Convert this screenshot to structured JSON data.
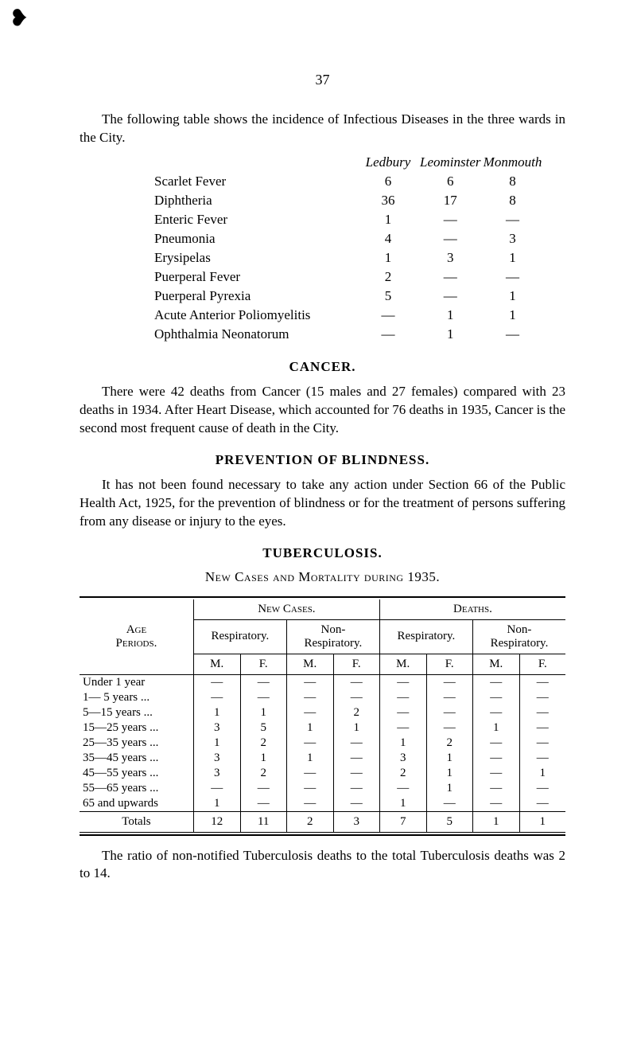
{
  "page_number": "37",
  "marker_glyph": "❥",
  "para1": "The following table shows the incidence of Infectious Diseases in the three wards in the City.",
  "incidence": {
    "columns": [
      "Ledbury",
      "Leominster",
      "Monmouth"
    ],
    "ellipsis": "...",
    "rows": [
      {
        "name": "Scarlet Fever",
        "vals": [
          "6",
          "6",
          "8"
        ]
      },
      {
        "name": "Diphtheria",
        "vals": [
          "36",
          "17",
          "8"
        ]
      },
      {
        "name": "Enteric Fever",
        "vals": [
          "1",
          "—",
          "—"
        ]
      },
      {
        "name": "Pneumonia",
        "vals": [
          "4",
          "—",
          "3"
        ]
      },
      {
        "name": "Erysipelas",
        "vals": [
          "1",
          "3",
          "1"
        ]
      },
      {
        "name": "Puerperal Fever",
        "vals": [
          "2",
          "—",
          "—"
        ]
      },
      {
        "name": "Puerperal Pyrexia",
        "vals": [
          "5",
          "—",
          "1"
        ]
      },
      {
        "name": "Acute Anterior Poliomyelitis",
        "vals": [
          "—",
          "1",
          "1"
        ]
      },
      {
        "name": "Ophthalmia Neonatorum",
        "vals": [
          "—",
          "1",
          "—"
        ]
      }
    ]
  },
  "cancer": {
    "heading": "CANCER.",
    "para": "There were 42 deaths from Cancer (15 males and 27 females) compared with 23 deaths in 1934. After Heart Disease, which accounted for 76 deaths in 1935, Cancer is the second most frequent cause of death in the City."
  },
  "blindness": {
    "heading": "PREVENTION OF BLINDNESS.",
    "para": "It has not been found necessary to take any action under Section 66 of the Public Health Act, 1925, for the prevention of blindness or for the treatment of persons suffering from any disease or injury to the eyes."
  },
  "tuberculosis": {
    "heading": "TUBERCULOSIS.",
    "subheading": "New Cases and Mortality during 1935.",
    "age_label_top": "Age",
    "age_label_bottom": "Periods.",
    "new_cases_label": "New Cases.",
    "deaths_label": "Deaths.",
    "respiratory_label": "Respiratory.",
    "non_label": "Non-",
    "non_respiratory_label": "Respiratory.",
    "m_label": "M.",
    "f_label": "F.",
    "rows": [
      {
        "age": "Under 1 year",
        "vals": [
          "—",
          "—",
          "—",
          "—",
          "—",
          "—",
          "—",
          "—"
        ]
      },
      {
        "age": "1— 5 years ...",
        "vals": [
          "—",
          "—",
          "—",
          "—",
          "—",
          "—",
          "—",
          "—"
        ]
      },
      {
        "age": "5—15 years ...",
        "vals": [
          "1",
          "1",
          "—",
          "2",
          "—",
          "—",
          "—",
          "—"
        ]
      },
      {
        "age": "15—25 years ...",
        "vals": [
          "3",
          "5",
          "1",
          "1",
          "—",
          "—",
          "1",
          "—"
        ]
      },
      {
        "age": "25—35 years ...",
        "vals": [
          "1",
          "2",
          "—",
          "—",
          "1",
          "2",
          "—",
          "—"
        ]
      },
      {
        "age": "35—45 years ...",
        "vals": [
          "3",
          "1",
          "1",
          "—",
          "3",
          "1",
          "—",
          "—"
        ]
      },
      {
        "age": "45—55 years ...",
        "vals": [
          "3",
          "2",
          "—",
          "—",
          "2",
          "1",
          "—",
          "1"
        ]
      },
      {
        "age": "55—65 years ...",
        "vals": [
          "—",
          "—",
          "—",
          "—",
          "—",
          "1",
          "—",
          "—"
        ]
      },
      {
        "age": "65 and upwards",
        "vals": [
          "1",
          "—",
          "—",
          "—",
          "1",
          "—",
          "—",
          "—"
        ]
      }
    ],
    "totals_label": "Totals",
    "totals": [
      "12",
      "11",
      "2",
      "3",
      "7",
      "5",
      "1",
      "1"
    ]
  },
  "footer_para": "The ratio of non-notified Tuberculosis deaths to the total Tuberculosis deaths was 2 to 14."
}
